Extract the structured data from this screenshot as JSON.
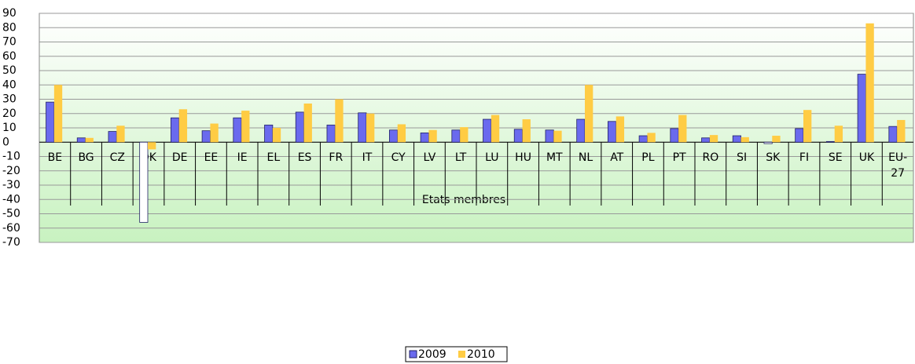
{
  "chart_data": {
    "type": "bar",
    "x_label": "Etats membres",
    "categories": [
      "BE",
      "BG",
      "CZ",
      "DK",
      "DE",
      "EE",
      "IE",
      "EL",
      "ES",
      "FR",
      "IT",
      "CY",
      "LV",
      "LT",
      "LU",
      "HU",
      "MT",
      "NL",
      "AT",
      "PL",
      "PT",
      "RO",
      "SI",
      "SK",
      "FI",
      "SE",
      "UK",
      "EU-27"
    ],
    "series": [
      {
        "name": "2009",
        "color": "#6a6aee",
        "invert_if_negative": true,
        "values": [
          28,
          3,
          7.5,
          -56,
          17,
          8,
          17,
          12,
          21,
          12,
          20.5,
          8.5,
          6.5,
          8.5,
          16,
          9,
          8.5,
          16,
          14.5,
          4.5,
          9.5,
          3,
          4.5,
          -1,
          9.5,
          0.5,
          47.5,
          11
        ]
      },
      {
        "name": "2010",
        "color": "#ffcc44",
        "values": [
          40,
          3,
          11.5,
          -5,
          23,
          13,
          22,
          10,
          27,
          30,
          20,
          12.5,
          8.5,
          10.5,
          19,
          16,
          8,
          40,
          18,
          6.5,
          19,
          5,
          3.5,
          4.5,
          22.5,
          11.5,
          83,
          15.5
        ]
      }
    ],
    "ylim": [
      -70,
      90
    ],
    "yticks": [
      -70,
      -60,
      -50,
      -40,
      -30,
      -20,
      -10,
      0,
      10,
      20,
      30,
      40,
      50,
      60,
      70,
      80,
      90
    ],
    "grid": true,
    "legend": "bottom"
  }
}
